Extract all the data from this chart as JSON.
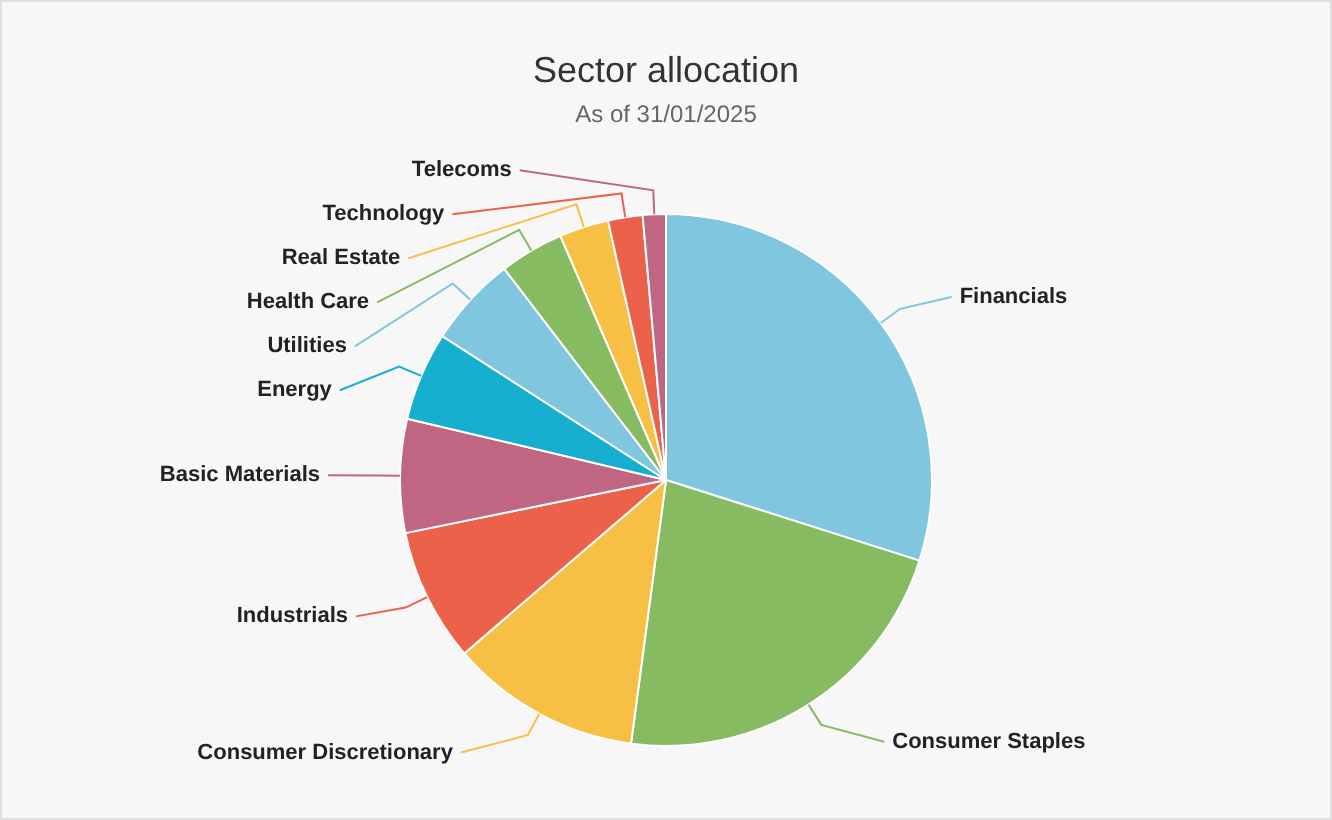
{
  "chart_data": {
    "type": "pie",
    "title": "Sector allocation",
    "subtitle": "As of 31/01/2025",
    "categories": [
      "Financials",
      "Consumer Staples",
      "Consumer Discretionary",
      "Industrials",
      "Basic Materials",
      "Energy",
      "Utilities",
      "Health Care",
      "Real Estate",
      "Technology",
      "Telecoms"
    ],
    "values": [
      29.9,
      22.2,
      11.6,
      8.1,
      6.9,
      5.4,
      5.5,
      3.9,
      3.0,
      2.1,
      1.4
    ],
    "colors": [
      "#7fc6de",
      "#87bb62",
      "#f8bf45",
      "#ec6149",
      "#c06683",
      "#17afd0",
      "#7fc6de",
      "#87bb62",
      "#f8bf45",
      "#ec6149",
      "#c06683"
    ]
  }
}
